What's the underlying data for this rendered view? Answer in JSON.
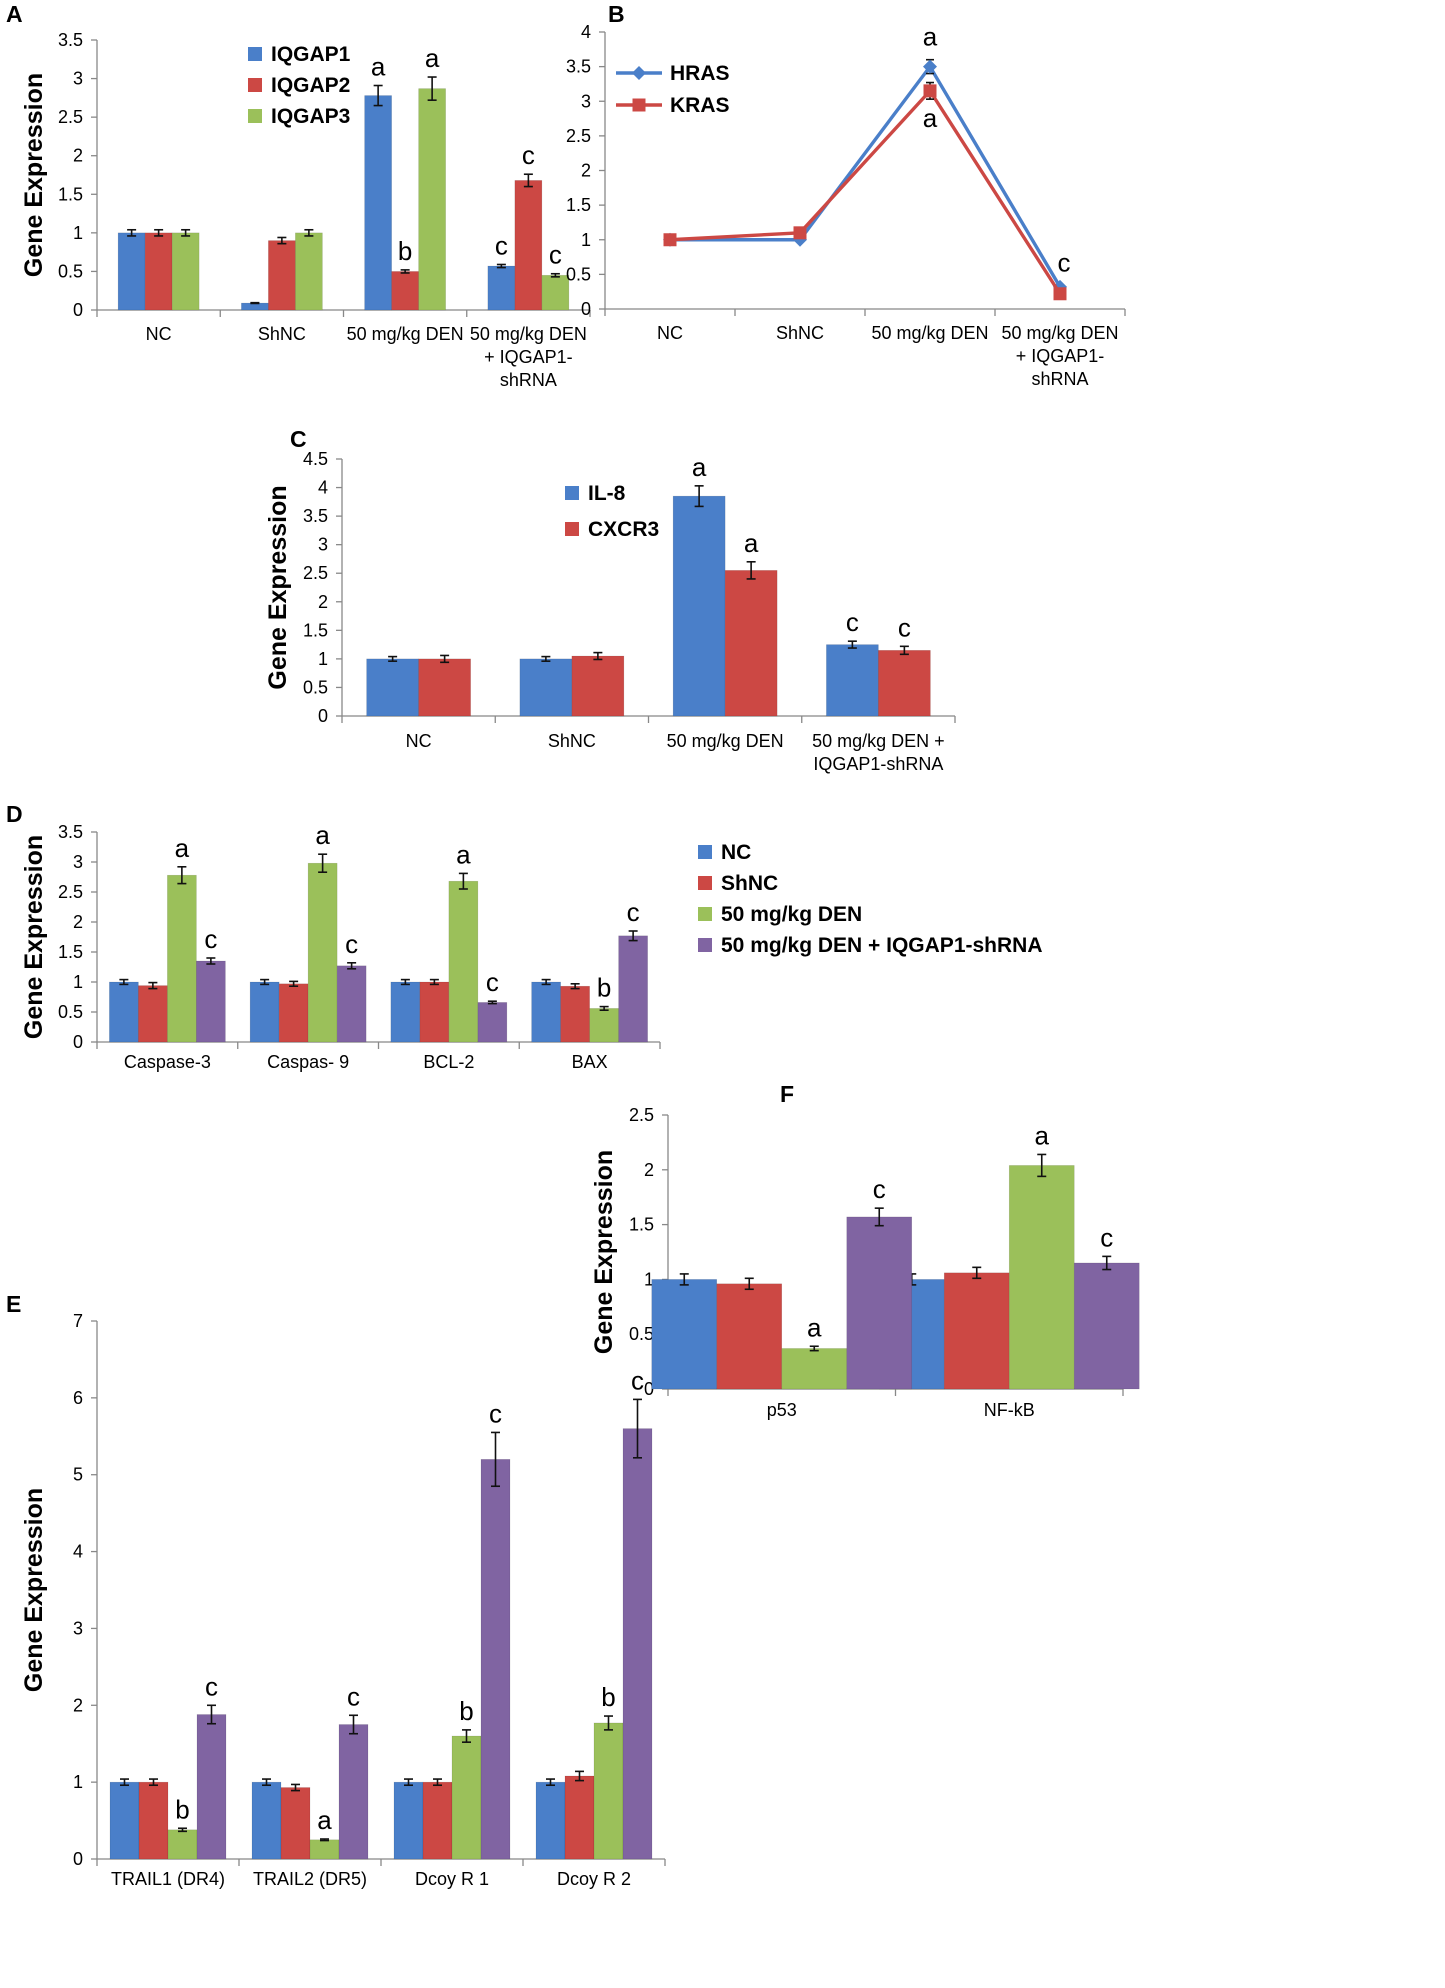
{
  "chart_data": [
    {
      "panel": "A",
      "type": "bar",
      "ylabel": "Gene Expression",
      "ylim": [
        0,
        3.5
      ],
      "yticks": [
        0,
        0.5,
        1,
        1.5,
        2,
        2.5,
        3,
        3.5
      ],
      "categories": [
        [
          "NC"
        ],
        [
          "ShNC"
        ],
        [
          "50 mg/kg DEN"
        ],
        [
          "50 mg/kg DEN",
          "+ IQGAP1-",
          "shRNA"
        ]
      ],
      "series": [
        {
          "name": "IQGAP1",
          "color": "#4a7fc9",
          "values": [
            1.0,
            0.09,
            2.78,
            0.57
          ],
          "errors": [
            0.04,
            0.005,
            0.13,
            0.02
          ],
          "labels": [
            "",
            "",
            "a",
            "c"
          ]
        },
        {
          "name": "IQGAP2",
          "color": "#cc4844",
          "values": [
            1.0,
            0.9,
            0.5,
            1.68
          ],
          "errors": [
            0.04,
            0.04,
            0.02,
            0.08
          ],
          "labels": [
            "",
            "",
            "b",
            "c"
          ]
        },
        {
          "name": "IQGAP3",
          "color": "#9bc05a",
          "values": [
            1.0,
            1.0,
            2.87,
            0.45
          ],
          "errors": [
            0.04,
            0.04,
            0.15,
            0.02
          ],
          "labels": [
            "",
            "",
            "a",
            "c"
          ]
        }
      ]
    },
    {
      "panel": "B",
      "type": "line",
      "ylim": [
        0,
        4
      ],
      "yticks": [
        0,
        0.5,
        1,
        1.5,
        2,
        2.5,
        3,
        3.5,
        4
      ],
      "categories": [
        [
          "NC"
        ],
        [
          "ShNC"
        ],
        [
          "50 mg/kg DEN"
        ],
        [
          "50 mg/kg DEN",
          "+ IQGAP1-",
          "shRNA"
        ]
      ],
      "series": [
        {
          "name": "HRAS",
          "color": "#4a7fc9",
          "marker": "diamond",
          "values": [
            1.0,
            1.0,
            3.5,
            0.32
          ],
          "errors": [
            0.02,
            0.02,
            0.1,
            0.02
          ],
          "labels": [
            "",
            "",
            "a",
            "c"
          ]
        },
        {
          "name": "KRAS",
          "color": "#cc4844",
          "marker": "square",
          "values": [
            1.0,
            1.1,
            3.15,
            0.22
          ],
          "errors": [
            0.02,
            0.02,
            0.12,
            0.02
          ],
          "labels": [
            "",
            "",
            "a",
            ""
          ]
        }
      ]
    },
    {
      "panel": "C",
      "type": "bar",
      "ylabel": "Gene Expression",
      "ylim": [
        0,
        4.5
      ],
      "yticks": [
        0,
        0.5,
        1,
        1.5,
        2,
        2.5,
        3,
        3.5,
        4,
        4.5
      ],
      "categories": [
        [
          "NC"
        ],
        [
          "ShNC"
        ],
        [
          "50 mg/kg DEN"
        ],
        [
          "50 mg/kg DEN +",
          "IQGAP1-shRNA"
        ]
      ],
      "series": [
        {
          "name": "IL-8",
          "color": "#4a7fc9",
          "values": [
            1.0,
            1.0,
            3.85,
            1.25
          ],
          "errors": [
            0.04,
            0.04,
            0.18,
            0.06
          ],
          "labels": [
            "",
            "",
            "a",
            "c"
          ]
        },
        {
          "name": "CXCR3",
          "color": "#cc4844",
          "values": [
            1.0,
            1.05,
            2.55,
            1.15
          ],
          "errors": [
            0.06,
            0.06,
            0.15,
            0.07
          ],
          "labels": [
            "",
            "",
            "a",
            "c"
          ]
        }
      ]
    },
    {
      "panel": "D",
      "type": "bar",
      "ylabel": "Gene Expression",
      "ylim": [
        0,
        3.5
      ],
      "yticks": [
        0,
        0.5,
        1,
        1.5,
        2,
        2.5,
        3,
        3.5
      ],
      "categories": [
        [
          "Caspase-3"
        ],
        [
          "Caspas- 9"
        ],
        [
          "BCL-2"
        ],
        [
          "BAX"
        ]
      ],
      "series": [
        {
          "name": "NC",
          "color": "#4a7fc9",
          "values": [
            1.0,
            1.0,
            1.0,
            1.0
          ],
          "errors": [
            0.04,
            0.04,
            0.04,
            0.04
          ],
          "labels": [
            "",
            "",
            "",
            ""
          ]
        },
        {
          "name": "ShNC",
          "color": "#cc4844",
          "values": [
            0.94,
            0.97,
            1.0,
            0.93
          ],
          "errors": [
            0.05,
            0.04,
            0.04,
            0.04
          ],
          "labels": [
            "",
            "",
            "",
            ""
          ]
        },
        {
          "name": "50 mg/kg DEN",
          "color": "#9bc05a",
          "values": [
            2.78,
            2.98,
            2.68,
            0.56
          ],
          "errors": [
            0.14,
            0.15,
            0.13,
            0.03
          ],
          "labels": [
            "a",
            "a",
            "a",
            "b"
          ]
        },
        {
          "name": "50 mg/kg DEN + IQGAP1-shRNA",
          "color": "#8064a2",
          "values": [
            1.35,
            1.27,
            0.66,
            1.77
          ],
          "errors": [
            0.05,
            0.05,
            0.02,
            0.08
          ],
          "labels": [
            "c",
            "c",
            "c",
            "c"
          ]
        }
      ]
    },
    {
      "panel": "E",
      "type": "bar",
      "ylabel": "Gene Expression",
      "ylim": [
        0,
        7
      ],
      "yticks": [
        0,
        1,
        2,
        3,
        4,
        5,
        6,
        7
      ],
      "categories": [
        [
          "TRAIL1 (DR4)"
        ],
        [
          "TRAIL2 (DR5)"
        ],
        [
          "Dcoy R 1"
        ],
        [
          "Dcoy R 2"
        ]
      ],
      "series": [
        {
          "name": "NC",
          "color": "#4a7fc9",
          "values": [
            1.0,
            1.0,
            1.0,
            1.0
          ],
          "errors": [
            0.04,
            0.04,
            0.04,
            0.04
          ],
          "labels": [
            "",
            "",
            "",
            ""
          ]
        },
        {
          "name": "ShNC",
          "color": "#cc4844",
          "values": [
            1.0,
            0.93,
            1.0,
            1.08
          ],
          "errors": [
            0.04,
            0.04,
            0.04,
            0.06
          ],
          "labels": [
            "",
            "",
            "",
            ""
          ]
        },
        {
          "name": "50 mg/kg DEN",
          "color": "#9bc05a",
          "values": [
            0.38,
            0.25,
            1.6,
            1.77
          ],
          "errors": [
            0.02,
            0.01,
            0.08,
            0.09
          ],
          "labels": [
            "b",
            "a",
            "b",
            "b"
          ]
        },
        {
          "name": "50 mg/kg DEN + IQGAP1-shRNA",
          "color": "#8064a2",
          "values": [
            1.88,
            1.75,
            5.2,
            5.6
          ],
          "errors": [
            0.12,
            0.12,
            0.35,
            0.38
          ],
          "labels": [
            "c",
            "c",
            "c",
            "c"
          ]
        }
      ]
    },
    {
      "panel": "F",
      "type": "bar",
      "ylabel": "Gene Expression",
      "ylim": [
        0,
        2.5
      ],
      "yticks": [
        0,
        0.5,
        1,
        1.5,
        2,
        2.5
      ],
      "categories": [
        [
          "p53"
        ],
        [
          "NF-kB"
        ]
      ],
      "series": [
        {
          "name": "NC",
          "color": "#4a7fc9",
          "values": [
            1.0,
            1.0
          ],
          "errors": [
            0.05,
            0.05
          ],
          "labels": [
            "",
            ""
          ]
        },
        {
          "name": "ShNC",
          "color": "#cc4844",
          "values": [
            0.96,
            1.06
          ],
          "errors": [
            0.05,
            0.05
          ],
          "labels": [
            "",
            ""
          ]
        },
        {
          "name": "50 mg/kg DEN",
          "color": "#9bc05a",
          "values": [
            0.37,
            2.04
          ],
          "errors": [
            0.02,
            0.1
          ],
          "labels": [
            "a",
            "a"
          ]
        },
        {
          "name": "50 mg/kg DEN + IQGAP1-shRNA",
          "color": "#8064a2",
          "values": [
            1.57,
            1.15
          ],
          "errors": [
            0.08,
            0.06
          ],
          "labels": [
            "c",
            "c"
          ]
        }
      ]
    }
  ]
}
